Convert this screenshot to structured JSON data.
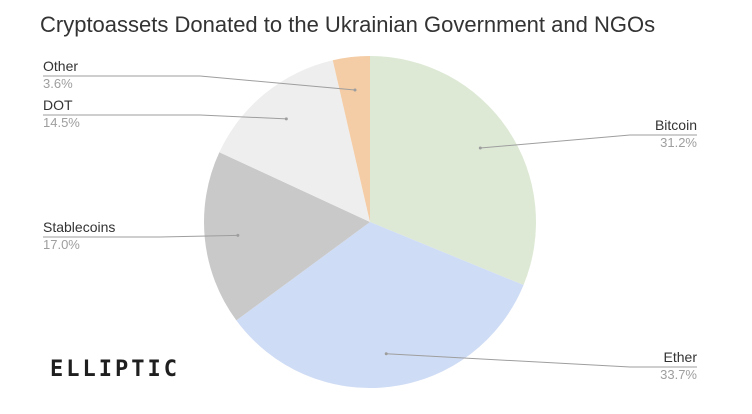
{
  "chart_data": {
    "type": "pie",
    "title": "Cryptoassets Donated to the Ukrainian Government and NGOs",
    "slices": [
      {
        "label": "Bitcoin",
        "value": 31.2,
        "value_label": "31.2%",
        "color": "#dde9d5"
      },
      {
        "label": "Ether",
        "value": 33.7,
        "value_label": "33.7%",
        "color": "#cfdcf5"
      },
      {
        "label": "Stablecoins",
        "value": 17.0,
        "value_label": "17.0%",
        "color": "#c9c9c9"
      },
      {
        "label": "DOT",
        "value": 14.5,
        "value_label": "14.5%",
        "color": "#eeeeee"
      },
      {
        "label": "Other",
        "value": 3.6,
        "value_label": "3.6%",
        "color": "#f4cca5"
      }
    ],
    "start": "top",
    "direction": "clockwise",
    "legend": "outside-labels"
  },
  "logo": {
    "text": "ELLIPTIC"
  }
}
